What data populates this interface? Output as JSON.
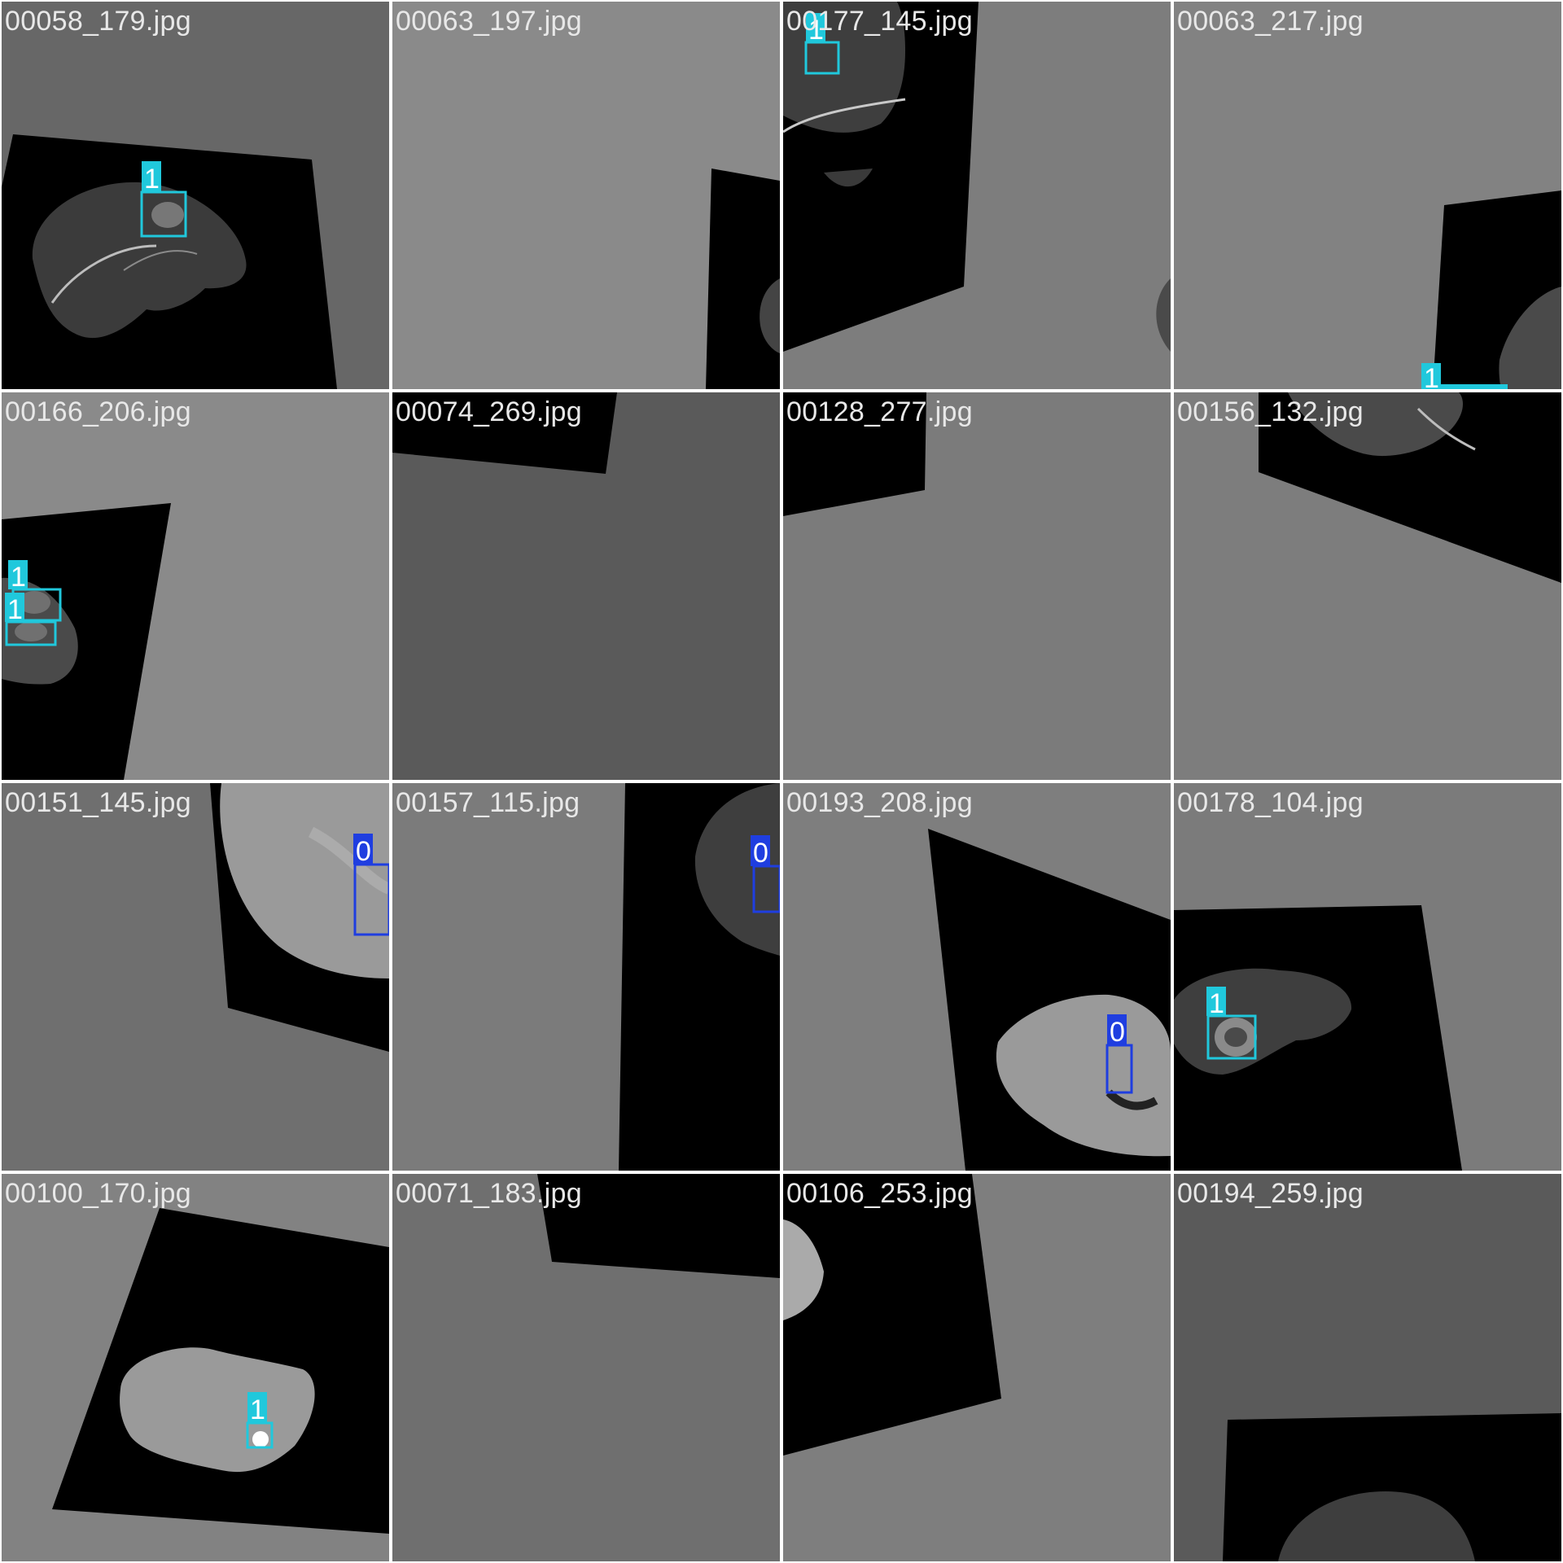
{
  "grid": {
    "tiles": [
      {
        "filename": "00058_179.jpg",
        "detections": [
          {
            "class_label": "1"
          }
        ]
      },
      {
        "filename": "00063_197.jpg",
        "detections": []
      },
      {
        "filename": "00177_145.jpg",
        "detections": [
          {
            "class_label": "1"
          }
        ]
      },
      {
        "filename": "00063_217.jpg",
        "detections": [
          {
            "class_label": "1"
          }
        ]
      },
      {
        "filename": "00166_206.jpg",
        "detections": [
          {
            "class_label": "1"
          },
          {
            "class_label": "1"
          }
        ]
      },
      {
        "filename": "00074_269.jpg",
        "detections": []
      },
      {
        "filename": "00128_277.jpg",
        "detections": []
      },
      {
        "filename": "00156_132.jpg",
        "detections": []
      },
      {
        "filename": "00151_145.jpg",
        "detections": [
          {
            "class_label": "0"
          }
        ]
      },
      {
        "filename": "00157_115.jpg",
        "detections": [
          {
            "class_label": "0"
          }
        ]
      },
      {
        "filename": "00193_208.jpg",
        "detections": [
          {
            "class_label": "0"
          }
        ]
      },
      {
        "filename": "00178_104.jpg",
        "detections": [
          {
            "class_label": "1"
          }
        ]
      },
      {
        "filename": "00100_170.jpg",
        "detections": [
          {
            "class_label": "1"
          }
        ]
      },
      {
        "filename": "00071_183.jpg",
        "detections": []
      },
      {
        "filename": "00106_253.jpg",
        "detections": []
      },
      {
        "filename": "00194_259.jpg",
        "detections": []
      }
    ]
  },
  "class_colors": {
    "0": "#1f3ee0",
    "1": "#20c8dc"
  }
}
